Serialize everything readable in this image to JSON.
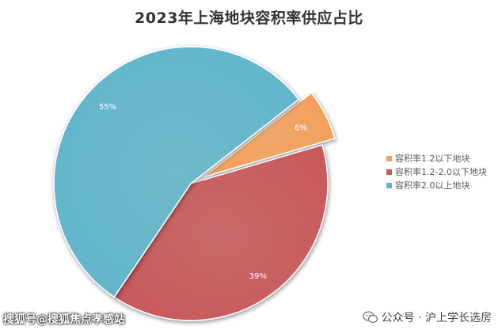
{
  "chart_data": {
    "type": "pie",
    "title": "2023年上海地块容积率供应占比",
    "slices": [
      {
        "label": "容积率1.2以下地块",
        "value": 6,
        "display": "6%",
        "color": "#F5A15A",
        "exploded": true
      },
      {
        "label": "容积率1.2-2.0以下地块",
        "value": 39,
        "display": "39%",
        "color": "#C85A5C",
        "exploded": false
      },
      {
        "label": "容积率2.0以上地块",
        "value": 55,
        "display": "55%",
        "color": "#62B6CC",
        "exploded": false
      }
    ],
    "legend_position": "right"
  },
  "watermarks": {
    "left": "搜狐号@搜狐焦点孝感站",
    "right": "公众号 · 沪上学长选房"
  }
}
